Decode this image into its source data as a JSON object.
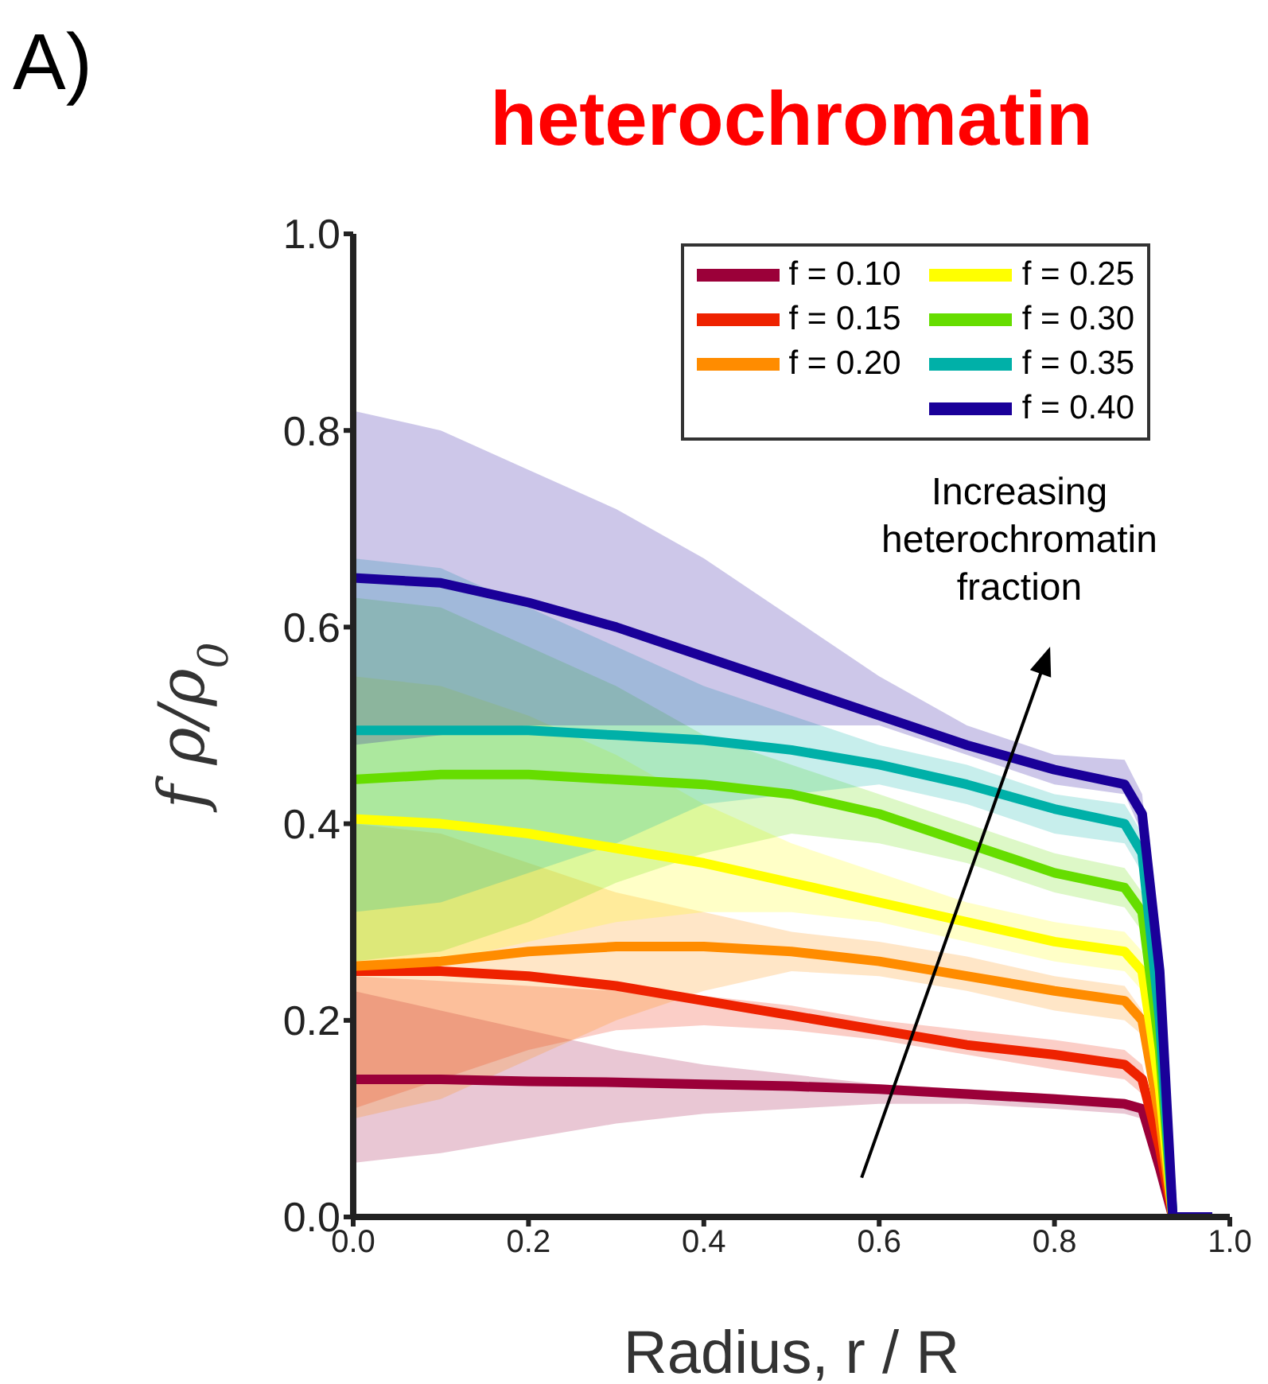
{
  "chart_data": {
    "type": "line",
    "title": "heterochromatin",
    "xlabel": "Radius, r / R",
    "ylabel": "f ρ/ρ$_{0}$",
    "annotations": [
      "A)",
      "Increasing heterochromatin fraction"
    ],
    "x": [
      0,
      0.1,
      0.2,
      0.3,
      0.4,
      0.5,
      0.6,
      0.7,
      0.8,
      0.88,
      0.9,
      0.92,
      0.935,
      0.98
    ],
    "series": [
      {
        "name": "f = 0.10",
        "color": "#9b0039",
        "values": [
          0.14,
          0.14,
          0.138,
          0.137,
          0.135,
          0.133,
          0.13,
          0.125,
          0.12,
          0.115,
          0.11,
          0.05,
          0,
          0
        ],
        "lower": [
          0.055,
          0.065,
          0.08,
          0.095,
          0.105,
          0.11,
          0.115,
          0.115,
          0.11,
          0.105,
          0.1,
          0.045,
          0,
          0
        ],
        "upper": [
          0.23,
          0.21,
          0.19,
          0.17,
          0.155,
          0.145,
          0.135,
          0.13,
          0.125,
          0.12,
          0.115,
          0.055,
          0,
          0
        ]
      },
      {
        "name": "f = 0.15",
        "color": "#ee2200",
        "values": [
          0.25,
          0.25,
          0.245,
          0.235,
          0.22,
          0.205,
          0.19,
          0.175,
          0.165,
          0.155,
          0.14,
          0.07,
          0,
          0
        ],
        "lower": [
          0.11,
          0.14,
          0.17,
          0.19,
          0.195,
          0.19,
          0.18,
          0.165,
          0.15,
          0.14,
          0.125,
          0.06,
          0,
          0
        ],
        "upper": [
          0.245,
          0.24,
          0.235,
          0.23,
          0.225,
          0.215,
          0.2,
          0.19,
          0.18,
          0.17,
          0.155,
          0.08,
          0,
          0
        ]
      },
      {
        "name": "f = 0.20",
        "color": "#ff8c00",
        "values": [
          0.255,
          0.26,
          0.27,
          0.275,
          0.275,
          0.27,
          0.26,
          0.245,
          0.23,
          0.22,
          0.2,
          0.1,
          0,
          0
        ],
        "lower": [
          0.1,
          0.12,
          0.16,
          0.2,
          0.23,
          0.25,
          0.245,
          0.23,
          0.21,
          0.2,
          0.185,
          0.09,
          0,
          0
        ],
        "upper": [
          0.4,
          0.39,
          0.36,
          0.33,
          0.31,
          0.29,
          0.28,
          0.265,
          0.245,
          0.235,
          0.21,
          0.11,
          0,
          0
        ]
      },
      {
        "name": "f = 0.25",
        "color": "#ffff00",
        "values": [
          0.405,
          0.4,
          0.39,
          0.375,
          0.36,
          0.34,
          0.32,
          0.3,
          0.28,
          0.27,
          0.25,
          0.13,
          0,
          0
        ],
        "lower": [
          0.26,
          0.26,
          0.28,
          0.3,
          0.31,
          0.31,
          0.3,
          0.28,
          0.26,
          0.25,
          0.23,
          0.12,
          0,
          0
        ],
        "upper": [
          0.55,
          0.54,
          0.51,
          0.47,
          0.42,
          0.38,
          0.35,
          0.32,
          0.3,
          0.29,
          0.27,
          0.14,
          0,
          0
        ]
      },
      {
        "name": "f = 0.30",
        "color": "#66dd00",
        "values": [
          0.445,
          0.45,
          0.45,
          0.445,
          0.44,
          0.43,
          0.41,
          0.38,
          0.35,
          0.335,
          0.31,
          0.17,
          0,
          0
        ],
        "lower": [
          0.26,
          0.27,
          0.3,
          0.34,
          0.37,
          0.39,
          0.38,
          0.36,
          0.33,
          0.315,
          0.29,
          0.16,
          0,
          0
        ],
        "upper": [
          0.63,
          0.62,
          0.58,
          0.54,
          0.49,
          0.46,
          0.43,
          0.4,
          0.37,
          0.355,
          0.33,
          0.18,
          0,
          0
        ]
      },
      {
        "name": "f = 0.35",
        "color": "#00b0a8",
        "values": [
          0.495,
          0.495,
          0.495,
          0.49,
          0.485,
          0.475,
          0.46,
          0.44,
          0.415,
          0.4,
          0.37,
          0.2,
          0,
          0
        ],
        "lower": [
          0.31,
          0.32,
          0.35,
          0.38,
          0.42,
          0.43,
          0.44,
          0.42,
          0.39,
          0.38,
          0.35,
          0.19,
          0,
          0
        ],
        "upper": [
          0.67,
          0.66,
          0.62,
          0.58,
          0.54,
          0.51,
          0.48,
          0.46,
          0.43,
          0.42,
          0.39,
          0.21,
          0,
          0
        ]
      },
      {
        "name": "f = 0.40",
        "color": "#1a0099",
        "values": [
          0.65,
          0.645,
          0.625,
          0.6,
          0.57,
          0.54,
          0.51,
          0.48,
          0.455,
          0.44,
          0.41,
          0.25,
          0,
          0
        ],
        "lower": [
          0.48,
          0.49,
          0.5,
          0.5,
          0.5,
          0.5,
          0.5,
          0.47,
          0.44,
          0.43,
          0.39,
          0.24,
          0,
          0
        ],
        "upper": [
          0.82,
          0.8,
          0.76,
          0.72,
          0.67,
          0.61,
          0.55,
          0.5,
          0.47,
          0.465,
          0.43,
          0.26,
          0,
          0
        ]
      }
    ],
    "xlim": [
      0,
      1
    ],
    "xticks": [
      {
        "value": 0,
        "label": "0.0"
      },
      {
        "value": 0.2,
        "label": "0.2"
      },
      {
        "value": 0.4,
        "label": "0.4"
      },
      {
        "value": 0.6,
        "label": "0.6"
      },
      {
        "value": 0.8,
        "label": "0.8"
      },
      {
        "value": 1,
        "label": "1.0"
      }
    ],
    "ylim": [
      0,
      1
    ],
    "yticks": [
      {
        "value": 0,
        "label": "0.0"
      },
      {
        "value": 0.2,
        "label": "0.2"
      },
      {
        "value": 0.4,
        "label": "0.4"
      },
      {
        "value": 0.6,
        "label": "0.6"
      },
      {
        "value": 0.8,
        "label": "0.8"
      },
      {
        "value": 1,
        "label": "1.0"
      }
    ],
    "legend": "top right",
    "grid": false,
    "marker": "none",
    "line_style": "solid"
  }
}
